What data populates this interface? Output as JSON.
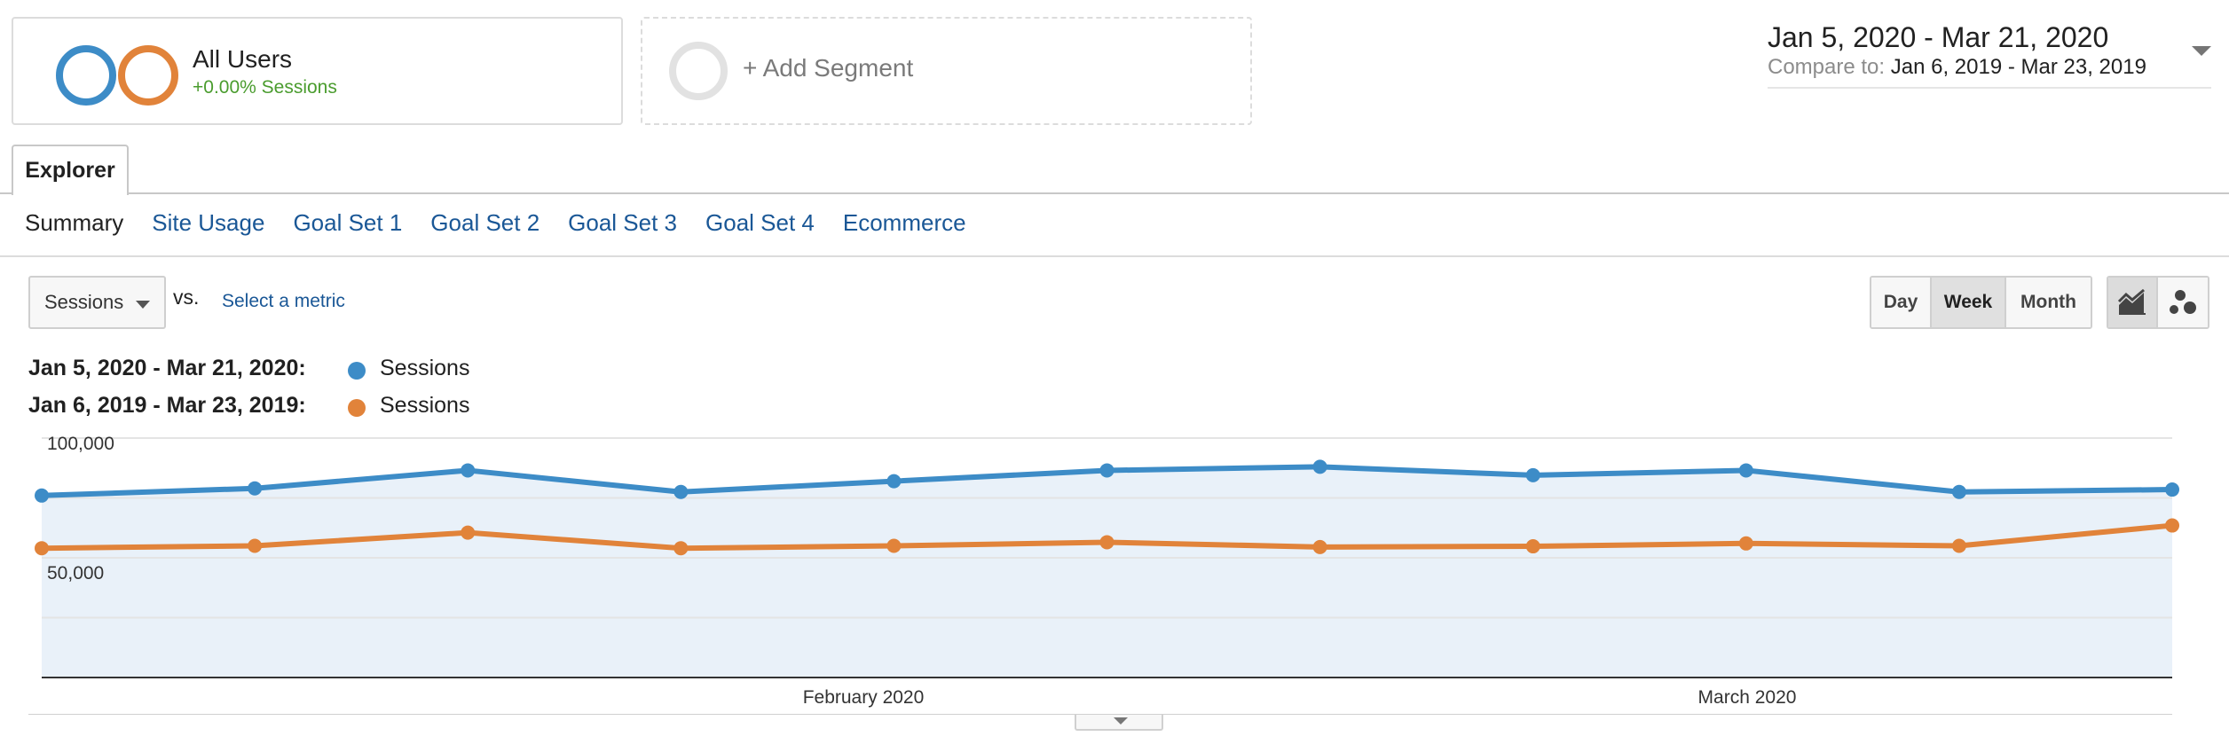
{
  "segments": {
    "all_users": {
      "title": "All Users",
      "subtitle": "+0.00% Sessions"
    },
    "add": {
      "label": "+ Add Segment"
    }
  },
  "date_range": {
    "main": "Jan 5, 2020 - Mar 21, 2020",
    "compare_label": "Compare to:",
    "compare_value": "Jan 6, 2019 - Mar 23, 2019"
  },
  "tabs": {
    "explorer": "Explorer"
  },
  "subnav": [
    "Summary",
    "Site Usage",
    "Goal Set 1",
    "Goal Set 2",
    "Goal Set 3",
    "Goal Set 4",
    "Ecommerce"
  ],
  "metric": {
    "selected": "Sessions",
    "vs": "vs.",
    "select_link": "Select a metric"
  },
  "period": {
    "day": "Day",
    "week": "Week",
    "month": "Month",
    "active": "Week"
  },
  "view_icons": {
    "line": "line-chart-icon",
    "motion": "motion-chart-icon"
  },
  "legend": [
    {
      "range": "Jan 5, 2020 - Mar 21, 2020:",
      "name": "Sessions",
      "color": "#3d8cc7"
    },
    {
      "range": "Jan 6, 2019 - Mar 23, 2019:",
      "name": "Sessions",
      "color": "#e1833a"
    }
  ],
  "colors": {
    "blue": "#3d8cc7",
    "orange": "#e1833a",
    "link": "#1a5796",
    "green": "#4a9c2e"
  },
  "chart_data": {
    "type": "line",
    "ylim": [
      0,
      100000
    ],
    "y_tick_labels": [
      "100,000",
      "50,000"
    ],
    "x_tick_labels": [
      "February 2020",
      "March 2020"
    ],
    "series": [
      {
        "name": "Sessions",
        "color": "#3d8cc7",
        "values": [
          76000,
          79000,
          86500,
          77500,
          82000,
          86500,
          88000,
          84500,
          86500,
          77500,
          78500
        ]
      },
      {
        "name": "Sessions",
        "color": "#e1833a",
        "values": [
          54000,
          55000,
          60500,
          54000,
          55000,
          56500,
          54500,
          54800,
          56000,
          55000,
          63500
        ]
      }
    ]
  }
}
